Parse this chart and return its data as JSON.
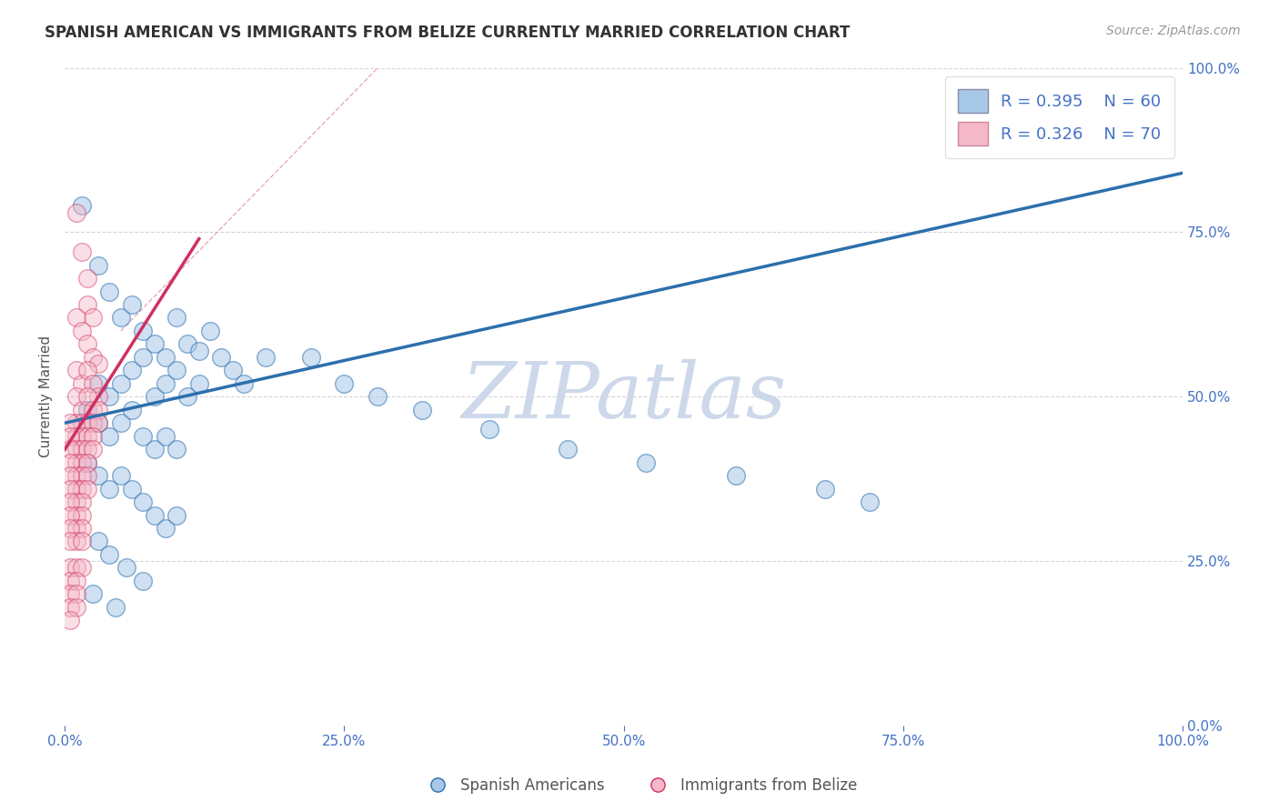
{
  "title": "SPANISH AMERICAN VS IMMIGRANTS FROM BELIZE CURRENTLY MARRIED CORRELATION CHART",
  "source": "Source: ZipAtlas.com",
  "ylabel": "Currently Married",
  "watermark": "ZIPatlas",
  "legend_r1": "R = 0.395",
  "legend_n1": "N = 60",
  "legend_r2": "R = 0.326",
  "legend_n2": "N = 70",
  "legend_label1": "Spanish Americans",
  "legend_label2": "Immigrants from Belize",
  "blue_color": "#a8c8e8",
  "pink_color": "#f4b8c8",
  "line_blue": "#2c6fad",
  "line_pink": "#d03060",
  "blue_scatter": [
    [
      1.5,
      79.0
    ],
    [
      3.0,
      70.0
    ],
    [
      4.0,
      66.0
    ],
    [
      5.0,
      62.0
    ],
    [
      6.0,
      64.0
    ],
    [
      7.0,
      60.0
    ],
    [
      8.0,
      58.0
    ],
    [
      9.0,
      56.0
    ],
    [
      10.0,
      62.0
    ],
    [
      11.0,
      58.0
    ],
    [
      12.0,
      57.0
    ],
    [
      13.0,
      60.0
    ],
    [
      14.0,
      56.0
    ],
    [
      15.0,
      54.0
    ],
    [
      16.0,
      52.0
    ],
    [
      3.0,
      52.0
    ],
    [
      4.0,
      50.0
    ],
    [
      5.0,
      52.0
    ],
    [
      6.0,
      54.0
    ],
    [
      7.0,
      56.0
    ],
    [
      8.0,
      50.0
    ],
    [
      9.0,
      52.0
    ],
    [
      10.0,
      54.0
    ],
    [
      11.0,
      50.0
    ],
    [
      12.0,
      52.0
    ],
    [
      2.0,
      48.0
    ],
    [
      3.0,
      46.0
    ],
    [
      4.0,
      44.0
    ],
    [
      5.0,
      46.0
    ],
    [
      6.0,
      48.0
    ],
    [
      7.0,
      44.0
    ],
    [
      8.0,
      42.0
    ],
    [
      9.0,
      44.0
    ],
    [
      10.0,
      42.0
    ],
    [
      2.0,
      40.0
    ],
    [
      3.0,
      38.0
    ],
    [
      4.0,
      36.0
    ],
    [
      5.0,
      38.0
    ],
    [
      6.0,
      36.0
    ],
    [
      7.0,
      34.0
    ],
    [
      8.0,
      32.0
    ],
    [
      9.0,
      30.0
    ],
    [
      10.0,
      32.0
    ],
    [
      3.0,
      28.0
    ],
    [
      4.0,
      26.0
    ],
    [
      5.5,
      24.0
    ],
    [
      7.0,
      22.0
    ],
    [
      2.5,
      20.0
    ],
    [
      4.5,
      18.0
    ],
    [
      18.0,
      56.0
    ],
    [
      22.0,
      56.0
    ],
    [
      25.0,
      52.0
    ],
    [
      28.0,
      50.0
    ],
    [
      32.0,
      48.0
    ],
    [
      38.0,
      45.0
    ],
    [
      45.0,
      42.0
    ],
    [
      52.0,
      40.0
    ],
    [
      60.0,
      38.0
    ],
    [
      68.0,
      36.0
    ],
    [
      72.0,
      34.0
    ]
  ],
  "pink_scatter": [
    [
      1.0,
      78.0
    ],
    [
      1.5,
      72.0
    ],
    [
      2.0,
      68.0
    ],
    [
      2.0,
      64.0
    ],
    [
      2.5,
      62.0
    ],
    [
      1.0,
      62.0
    ],
    [
      1.5,
      60.0
    ],
    [
      2.0,
      58.0
    ],
    [
      2.5,
      56.0
    ],
    [
      3.0,
      55.0
    ],
    [
      1.0,
      54.0
    ],
    [
      1.5,
      52.0
    ],
    [
      2.0,
      54.0
    ],
    [
      2.5,
      52.0
    ],
    [
      3.0,
      50.0
    ],
    [
      1.0,
      50.0
    ],
    [
      1.5,
      48.0
    ],
    [
      2.0,
      50.0
    ],
    [
      2.5,
      48.0
    ],
    [
      3.0,
      48.0
    ],
    [
      1.0,
      46.0
    ],
    [
      1.5,
      46.0
    ],
    [
      2.0,
      46.0
    ],
    [
      2.5,
      46.0
    ],
    [
      3.0,
      46.0
    ],
    [
      0.5,
      46.0
    ],
    [
      1.0,
      44.0
    ],
    [
      1.5,
      44.0
    ],
    [
      2.0,
      44.0
    ],
    [
      2.5,
      44.0
    ],
    [
      0.5,
      44.0
    ],
    [
      1.0,
      42.0
    ],
    [
      1.5,
      42.0
    ],
    [
      2.0,
      42.0
    ],
    [
      2.5,
      42.0
    ],
    [
      0.5,
      42.0
    ],
    [
      1.0,
      40.0
    ],
    [
      1.5,
      40.0
    ],
    [
      2.0,
      40.0
    ],
    [
      0.5,
      40.0
    ],
    [
      1.0,
      38.0
    ],
    [
      1.5,
      38.0
    ],
    [
      2.0,
      38.0
    ],
    [
      0.5,
      38.0
    ],
    [
      1.0,
      36.0
    ],
    [
      1.5,
      36.0
    ],
    [
      2.0,
      36.0
    ],
    [
      0.5,
      36.0
    ],
    [
      1.0,
      34.0
    ],
    [
      1.5,
      34.0
    ],
    [
      0.5,
      34.0
    ],
    [
      1.0,
      32.0
    ],
    [
      1.5,
      32.0
    ],
    [
      0.5,
      32.0
    ],
    [
      1.0,
      30.0
    ],
    [
      1.5,
      30.0
    ],
    [
      0.5,
      30.0
    ],
    [
      1.0,
      28.0
    ],
    [
      0.5,
      28.0
    ],
    [
      1.5,
      28.0
    ],
    [
      0.5,
      24.0
    ],
    [
      1.0,
      24.0
    ],
    [
      1.5,
      24.0
    ],
    [
      0.5,
      22.0
    ],
    [
      1.0,
      22.0
    ],
    [
      0.5,
      20.0
    ],
    [
      1.0,
      20.0
    ],
    [
      0.5,
      18.0
    ],
    [
      1.0,
      18.0
    ],
    [
      0.5,
      16.0
    ]
  ],
  "blue_line": {
    "x_start": 0,
    "x_end": 100,
    "y_start": 46,
    "y_end": 84
  },
  "pink_line": {
    "x_start": 0,
    "x_end": 12,
    "y_start": 42,
    "y_end": 74
  },
  "diagonal_line": {
    "x_start": 5,
    "x_end": 28,
    "y_start": 60,
    "y_end": 100
  },
  "xlim": [
    0,
    100
  ],
  "ylim": [
    0,
    100
  ],
  "yticks": [
    0,
    25,
    50,
    75,
    100
  ],
  "ytick_labels": [
    "0.0%",
    "25.0%",
    "50.0%",
    "75.0%",
    "100.0%"
  ],
  "xticks": [
    0,
    25,
    50,
    75,
    100
  ],
  "xtick_labels": [
    "0.0%",
    "25.0%",
    "50.0%",
    "75.0%",
    "100.0%"
  ],
  "title_fontsize": 12,
  "source_fontsize": 10,
  "watermark_fontsize": 62,
  "watermark_color": "#cdd8ea",
  "tick_color": "#4472c4",
  "background_color": "#ffffff",
  "grid_color": "#bbbbbb",
  "grid_alpha": 0.6
}
